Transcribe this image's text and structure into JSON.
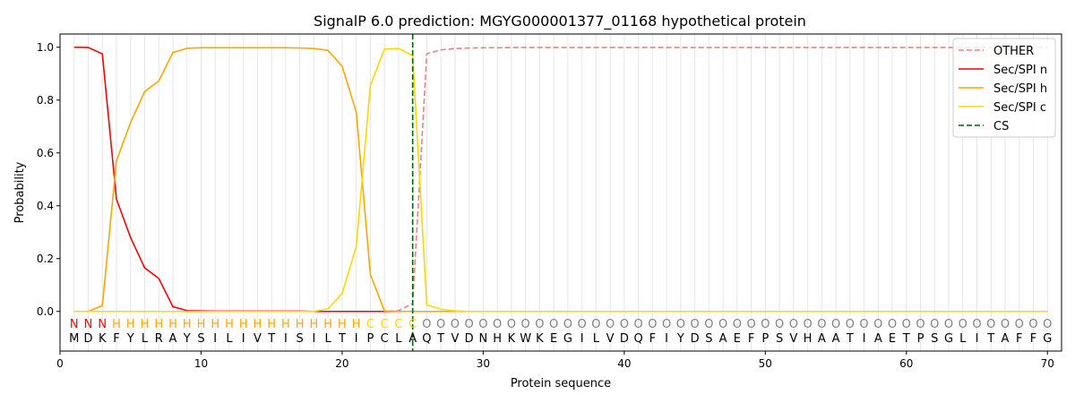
{
  "chart_data": {
    "type": "line",
    "title": "SignalP 6.0 prediction: MGYG000001377_01168 hypothetical protein",
    "xlabel": "Protein sequence",
    "ylabel": "Probability",
    "xlim": [
      0,
      71
    ],
    "ylim": [
      -0.15,
      1.05
    ],
    "x_ticks": [
      0,
      10,
      20,
      30,
      40,
      50,
      60,
      70
    ],
    "y_ticks": [
      0.0,
      0.2,
      0.4,
      0.6,
      0.8,
      1.0
    ],
    "x_tick_labels": [
      "0",
      "10",
      "20",
      "30",
      "40",
      "50",
      "60",
      "70"
    ],
    "y_tick_labels": [
      "0.0",
      "0.2",
      "0.4",
      "0.6",
      "0.8",
      "1.0"
    ],
    "grid": "vertical lines at each residue",
    "legend_position": "top-right",
    "sequence": [
      "M",
      "D",
      "K",
      "F",
      "Y",
      "L",
      "R",
      "A",
      "Y",
      "S",
      "I",
      "L",
      "I",
      "V",
      "T",
      "I",
      "S",
      "I",
      "L",
      "T",
      "I",
      "P",
      "C",
      "L",
      "A",
      "Q",
      "T",
      "V",
      "D",
      "N",
      "H",
      "K",
      "W",
      "K",
      "E",
      "G",
      "I",
      "L",
      "V",
      "D",
      "Q",
      "F",
      "I",
      "Y",
      "D",
      "S",
      "A",
      "E",
      "F",
      "P",
      "S",
      "V",
      "H",
      "A",
      "A",
      "T",
      "I",
      "A",
      "E",
      "T",
      "P",
      "S",
      "G",
      "L",
      "I",
      "T",
      "A",
      "F",
      "F",
      "G"
    ],
    "labels": [
      "N",
      "N",
      "N",
      "H",
      "H",
      "H",
      "H",
      "H",
      "H",
      "H",
      "H",
      "H",
      "H",
      "H",
      "H",
      "H",
      "H",
      "H",
      "H",
      "H",
      "H",
      "C",
      "C",
      "C",
      "C",
      "O",
      "O",
      "O",
      "O",
      "O",
      "O",
      "O",
      "O",
      "O",
      "O",
      "O",
      "O",
      "O",
      "O",
      "O",
      "O",
      "O",
      "O",
      "O",
      "O",
      "O",
      "O",
      "O",
      "O",
      "O",
      "O",
      "O",
      "O",
      "O",
      "O",
      "O",
      "O",
      "O",
      "O",
      "O",
      "O",
      "O",
      "O",
      "O",
      "O",
      "O",
      "O",
      "O",
      "O",
      "O"
    ],
    "label_colors": {
      "N": "#ff0000",
      "H": "#ffa500",
      "C": "#ffd700",
      "O": "#808080"
    },
    "series": [
      {
        "name": "OTHER",
        "color": "#f08080",
        "dash": "dashed",
        "values": [
          0,
          0,
          0,
          0,
          0,
          0,
          0,
          0,
          0,
          0,
          0,
          0,
          0,
          0,
          0,
          0,
          0,
          0,
          0,
          0,
          0,
          0,
          0,
          0.003,
          0.03,
          0.975,
          0.99,
          0.995,
          0.997,
          0.998,
          0.998,
          0.999,
          0.999,
          0.999,
          0.999,
          0.999,
          0.999,
          0.999,
          0.999,
          0.999,
          0.999,
          0.999,
          0.999,
          0.999,
          0.999,
          0.999,
          0.999,
          0.999,
          0.999,
          0.999,
          0.999,
          0.999,
          0.999,
          0.999,
          0.999,
          0.999,
          0.999,
          0.999,
          0.999,
          0.999,
          0.999,
          0.999,
          0.999,
          0.999,
          0.999,
          0.999,
          0.999,
          0.999,
          0.999,
          0.999
        ]
      },
      {
        "name": "Sec/SPI n",
        "color": "#ff0000",
        "dash": "solid",
        "values": [
          1.0,
          0.999,
          0.975,
          0.425,
          0.28,
          0.165,
          0.125,
          0.018,
          0.003,
          0.002,
          0.001,
          0.001,
          0.001,
          0.001,
          0.001,
          0.001,
          0.001,
          0,
          0,
          0,
          0,
          0,
          0,
          0,
          0,
          0,
          0,
          0,
          0,
          0,
          0,
          0,
          0,
          0,
          0,
          0,
          0,
          0,
          0,
          0,
          0,
          0,
          0,
          0,
          0,
          0,
          0,
          0,
          0,
          0,
          0,
          0,
          0,
          0,
          0,
          0,
          0,
          0,
          0,
          0,
          0,
          0,
          0,
          0,
          0,
          0,
          0,
          0,
          0,
          0
        ]
      },
      {
        "name": "Sec/SPI h",
        "color": "#ffa500",
        "dash": "solid",
        "values": [
          0,
          0,
          0.022,
          0.57,
          0.715,
          0.832,
          0.872,
          0.98,
          0.996,
          0.998,
          0.998,
          0.998,
          0.998,
          0.998,
          0.998,
          0.998,
          0.997,
          0.995,
          0.988,
          0.928,
          0.755,
          0.14,
          0.002,
          0,
          0,
          0,
          0,
          0,
          0,
          0,
          0,
          0,
          0,
          0,
          0,
          0,
          0,
          0,
          0,
          0,
          0,
          0,
          0,
          0,
          0,
          0,
          0,
          0,
          0,
          0,
          0,
          0,
          0,
          0,
          0,
          0,
          0,
          0,
          0,
          0,
          0,
          0,
          0,
          0,
          0,
          0,
          0,
          0,
          0,
          0
        ]
      },
      {
        "name": "Sec/SPI c",
        "color": "#ffd700",
        "dash": "solid",
        "values": [
          0,
          0,
          0,
          0,
          0,
          0,
          0,
          0,
          0,
          0,
          0,
          0,
          0,
          0,
          0,
          0,
          0,
          0,
          0.01,
          0.068,
          0.245,
          0.855,
          0.993,
          0.995,
          0.968,
          0.025,
          0.008,
          0.002,
          0,
          0,
          0,
          0,
          0,
          0,
          0,
          0,
          0,
          0,
          0,
          0,
          0,
          0,
          0,
          0,
          0,
          0,
          0,
          0,
          0,
          0,
          0,
          0,
          0,
          0,
          0,
          0,
          0,
          0,
          0,
          0,
          0,
          0,
          0,
          0,
          0,
          0,
          0,
          0,
          0,
          0
        ]
      }
    ],
    "cs": {
      "name": "CS",
      "x": 25,
      "color": "#006400",
      "dash": "dashed"
    }
  }
}
